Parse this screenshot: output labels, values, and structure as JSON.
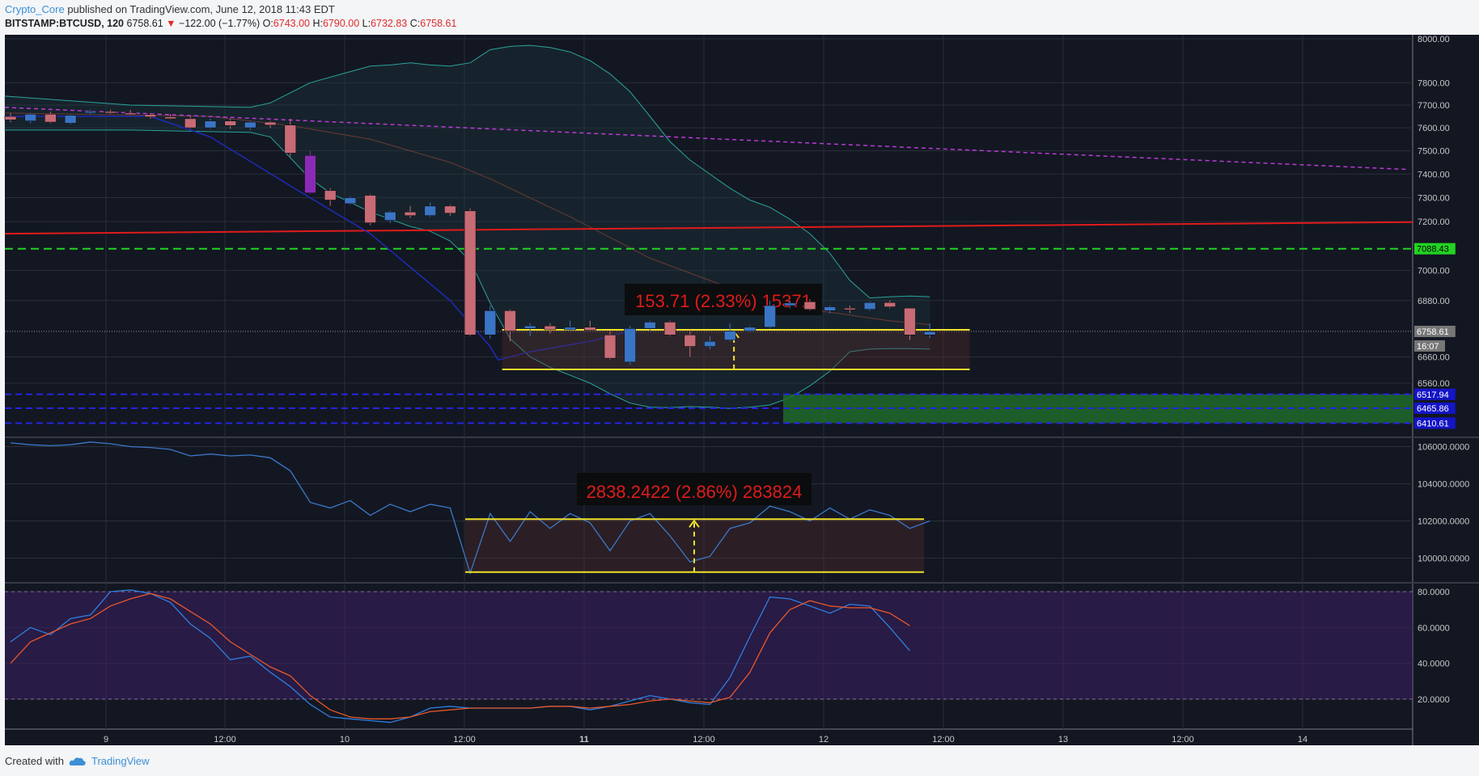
{
  "header": {
    "author": "Crypto_Core",
    "published_text": "published on TradingView.com, June 12, 2018 11:43 EDT"
  },
  "symbol_bar": {
    "symbol": "BITSTAMP:BTCUSD, 120",
    "last": "6758.61",
    "change": "−122.00 (−1.77%)",
    "open_label": "O:",
    "open": "6743.00",
    "high_label": "H:",
    "high": "6790.00",
    "low_label": "L:",
    "low": "6732.83",
    "close_label": "C:",
    "close": "6758.61"
  },
  "footer": {
    "created_with": "Created with",
    "brand": "TradingView"
  },
  "colors": {
    "pane_bg": "#131722",
    "up_candle": "#3a74c4",
    "down_candle": "#c76b75",
    "accent_green": "#22d422",
    "accent_red": "#e01b1b",
    "yellow": "#f0e22a",
    "blue_line": "#1e2bb8",
    "magenta": "#b93ad6",
    "teal": "#2aa39a"
  },
  "chart_data": [
    {
      "type": "candlestick",
      "pane": "price",
      "price_axis_ticks": [
        "8000.00",
        "7800.00",
        "7700.00",
        "7600.00",
        "7500.00",
        "7400.00",
        "7300.00",
        "7200.00",
        "7000.00",
        "6880.00",
        "6660.00",
        "6560.00"
      ],
      "time_axis_ticks": [
        "9",
        "12:00",
        "10",
        "12:00",
        "11",
        "12:00",
        "12",
        "12:00",
        "13",
        "12:00",
        "14"
      ],
      "ylim": [
        6390,
        8020
      ],
      "candles": [
        {
          "o": 7650,
          "h": 7665,
          "l": 7625,
          "c": 7635
        },
        {
          "o": 7630,
          "h": 7665,
          "l": 7620,
          "c": 7660
        },
        {
          "o": 7660,
          "h": 7670,
          "l": 7620,
          "c": 7625
        },
        {
          "o": 7620,
          "h": 7660,
          "l": 7615,
          "c": 7655
        },
        {
          "o": 7665,
          "h": 7680,
          "l": 7660,
          "c": 7672
        },
        {
          "o": 7672,
          "h": 7680,
          "l": 7660,
          "c": 7665
        },
        {
          "o": 7665,
          "h": 7678,
          "l": 7655,
          "c": 7658
        },
        {
          "o": 7658,
          "h": 7665,
          "l": 7640,
          "c": 7648
        },
        {
          "o": 7648,
          "h": 7660,
          "l": 7638,
          "c": 7640
        },
        {
          "o": 7640,
          "h": 7652,
          "l": 7595,
          "c": 7600
        },
        {
          "o": 7600,
          "h": 7640,
          "l": 7595,
          "c": 7630
        },
        {
          "o": 7630,
          "h": 7640,
          "l": 7595,
          "c": 7610
        },
        {
          "o": 7600,
          "h": 7630,
          "l": 7590,
          "c": 7625
        },
        {
          "o": 7625,
          "h": 7630,
          "l": 7600,
          "c": 7612
        },
        {
          "o": 7612,
          "h": 7640,
          "l": 7475,
          "c": 7490
        },
        {
          "o": 7480,
          "h": 7500,
          "l": 7315,
          "c": 7320
        },
        {
          "o": 7330,
          "h": 7340,
          "l": 7265,
          "c": 7290
        },
        {
          "o": 7275,
          "h": 7305,
          "l": 7270,
          "c": 7300
        },
        {
          "o": 7310,
          "h": 7315,
          "l": 7185,
          "c": 7195
        },
        {
          "o": 7205,
          "h": 7245,
          "l": 7195,
          "c": 7240
        },
        {
          "o": 7240,
          "h": 7265,
          "l": 7215,
          "c": 7225
        },
        {
          "o": 7225,
          "h": 7280,
          "l": 7220,
          "c": 7265
        },
        {
          "o": 7265,
          "h": 7270,
          "l": 7225,
          "c": 7235
        },
        {
          "o": 7245,
          "h": 7255,
          "l": 6740,
          "c": 6745
        },
        {
          "o": 6745,
          "h": 6860,
          "l": 6730,
          "c": 6840
        },
        {
          "o": 6840,
          "h": 6845,
          "l": 6720,
          "c": 6760
        },
        {
          "o": 6770,
          "h": 6790,
          "l": 6740,
          "c": 6780
        },
        {
          "o": 6780,
          "h": 6790,
          "l": 6750,
          "c": 6765
        },
        {
          "o": 6765,
          "h": 6800,
          "l": 6760,
          "c": 6775
        },
        {
          "o": 6775,
          "h": 6800,
          "l": 6760,
          "c": 6763
        },
        {
          "o": 6745,
          "h": 6760,
          "l": 6650,
          "c": 6655
        },
        {
          "o": 6640,
          "h": 6780,
          "l": 6630,
          "c": 6770
        },
        {
          "o": 6770,
          "h": 6800,
          "l": 6760,
          "c": 6795
        },
        {
          "o": 6795,
          "h": 6800,
          "l": 6740,
          "c": 6745
        },
        {
          "o": 6745,
          "h": 6765,
          "l": 6660,
          "c": 6700
        },
        {
          "o": 6700,
          "h": 6740,
          "l": 6690,
          "c": 6720
        },
        {
          "o": 6725,
          "h": 6790,
          "l": 6720,
          "c": 6760
        },
        {
          "o": 6760,
          "h": 6780,
          "l": 6755,
          "c": 6775
        },
        {
          "o": 6775,
          "h": 6880,
          "l": 6770,
          "c": 6860
        },
        {
          "o": 6860,
          "h": 6880,
          "l": 6850,
          "c": 6870
        },
        {
          "o": 6875,
          "h": 6885,
          "l": 6840,
          "c": 6845
        },
        {
          "o": 6840,
          "h": 6860,
          "l": 6830,
          "c": 6855
        },
        {
          "o": 6850,
          "h": 6860,
          "l": 6830,
          "c": 6848
        },
        {
          "o": 6845,
          "h": 6875,
          "l": 6840,
          "c": 6872
        },
        {
          "o": 6872,
          "h": 6880,
          "l": 6850,
          "c": 6855
        },
        {
          "o": 6850,
          "h": 6850,
          "l": 6725,
          "c": 6745
        },
        {
          "o": 6745,
          "h": 6790,
          "l": 6732,
          "c": 6758
        }
      ],
      "price_labels": [
        {
          "label": "7088.43",
          "color": "#22d422",
          "text_color": "#000000"
        },
        {
          "label": "6758.61",
          "color": "#777777",
          "text_color": "#ffffff"
        },
        {
          "label": "16:07",
          "color": "#777777",
          "text_color": "#ffffff"
        },
        {
          "label": "6517.94",
          "color": "#1414c8",
          "text_color": "#ffffff"
        },
        {
          "label": "6465.86",
          "color": "#1414c8",
          "text_color": "#ffffff"
        },
        {
          "label": "6410.61",
          "color": "#1414c8",
          "text_color": "#ffffff"
        }
      ],
      "measure_annotation": "153.71 (2.33%) 15371"
    },
    {
      "type": "line",
      "pane": "indicator",
      "axis_ticks": [
        "106000.0000",
        "104000.0000",
        "102000.0000",
        "100000.0000"
      ],
      "ylim": [
        98800,
        106800
      ],
      "values": [
        106200,
        106100,
        106050,
        106100,
        106250,
        106150,
        106000,
        105950,
        105850,
        105500,
        105600,
        105500,
        105550,
        105400,
        104700,
        103000,
        102700,
        103100,
        102300,
        102900,
        102500,
        102900,
        102700,
        99200,
        102400,
        100900,
        102500,
        101600,
        102400,
        101900,
        100400,
        102000,
        102400,
        101200,
        99800,
        100100,
        101600,
        101900,
        102800,
        102500,
        102000,
        102700,
        102100,
        102600,
        102300,
        101600,
        102000
      ],
      "measure_annotation": "2838.2422 (2.86%) 283824"
    },
    {
      "type": "line",
      "pane": "oscillator",
      "axis_ticks": [
        "80.0000",
        "60.0000",
        "40.0000",
        "20.0000"
      ],
      "ylim": [
        0,
        85
      ],
      "bands": [
        20,
        80
      ],
      "series": [
        {
          "color": "#2f7fe0",
          "values": [
            52,
            60,
            56,
            65,
            67,
            80,
            81,
            79,
            74,
            62,
            54,
            42,
            44,
            35,
            27,
            17,
            10,
            9,
            8,
            7,
            10,
            15,
            16,
            15,
            15,
            15,
            15,
            16,
            16,
            14,
            16,
            19,
            22,
            20,
            18,
            17,
            32,
            55,
            77,
            76,
            72,
            68,
            73,
            72,
            60,
            47
          ]
        },
        {
          "color": "#e8572a",
          "values": [
            40,
            52,
            57,
            62,
            65,
            72,
            76,
            79,
            76,
            69,
            62,
            52,
            45,
            38,
            33,
            22,
            14,
            10,
            9,
            9,
            10,
            13,
            14,
            15,
            15,
            15,
            15,
            16,
            16,
            15,
            16,
            17,
            19,
            20,
            19,
            18,
            21,
            35,
            57,
            70,
            75,
            72,
            71,
            71,
            68,
            61
          ]
        }
      ]
    }
  ]
}
